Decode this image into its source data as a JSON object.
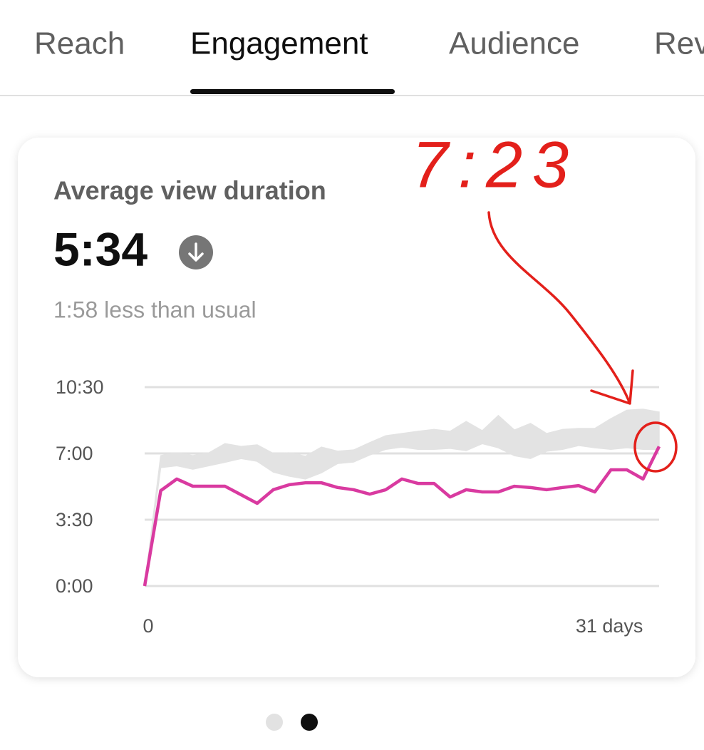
{
  "tabs": [
    "Reach",
    "Engagement",
    "Audience",
    "Rev"
  ],
  "card": {
    "title": "Average view duration",
    "value": "5:34",
    "subtitle": "1:58 less than usual"
  },
  "annotation": "7:23",
  "chart_data": {
    "type": "line",
    "x": [
      0,
      1,
      2,
      3,
      4,
      5,
      6,
      7,
      8,
      9,
      10,
      11,
      12,
      13,
      14,
      15,
      16,
      17,
      18,
      19,
      20,
      21,
      22,
      23,
      24,
      25,
      26,
      27,
      28,
      29,
      30,
      31,
      32
    ],
    "xlim": [
      0,
      32
    ],
    "xticks": [
      0,
      {
        "value": 31,
        "label": "31 days"
      }
    ],
    "ylim": [
      0,
      630
    ],
    "yticks": [
      {
        "value": 0,
        "label": "0:00"
      },
      {
        "value": 210,
        "label": "3:30"
      },
      {
        "value": 420,
        "label": "7:00"
      },
      {
        "value": 630,
        "label": "10:30"
      }
    ],
    "grid": true,
    "series": [
      {
        "color": "#d93aa0",
        "values": [
          0,
          302,
          339,
          316,
          316,
          316,
          289,
          262,
          305,
          321,
          327,
          327,
          312,
          305,
          291,
          305,
          339,
          325,
          325,
          282,
          305,
          298,
          298,
          316,
          312,
          305,
          312,
          318,
          298,
          368,
          368,
          339,
          442
        ]
      }
    ],
    "band": {
      "color": "#e3e3e3",
      "lower": [
        0,
        375,
        381,
        370,
        381,
        392,
        404,
        395,
        361,
        348,
        339,
        359,
        388,
        393,
        415,
        433,
        440,
        433,
        433,
        436,
        429,
        451,
        438,
        413,
        404,
        427,
        433,
        445,
        438,
        433,
        438,
        433,
        433
      ],
      "upper": [
        0,
        413,
        422,
        413,
        422,
        451,
        442,
        447,
        420,
        422,
        411,
        440,
        427,
        431,
        454,
        476,
        483,
        490,
        496,
        490,
        521,
        492,
        540,
        494,
        515,
        483,
        496,
        499,
        499,
        530,
        557,
        560,
        551
      ]
    }
  }
}
